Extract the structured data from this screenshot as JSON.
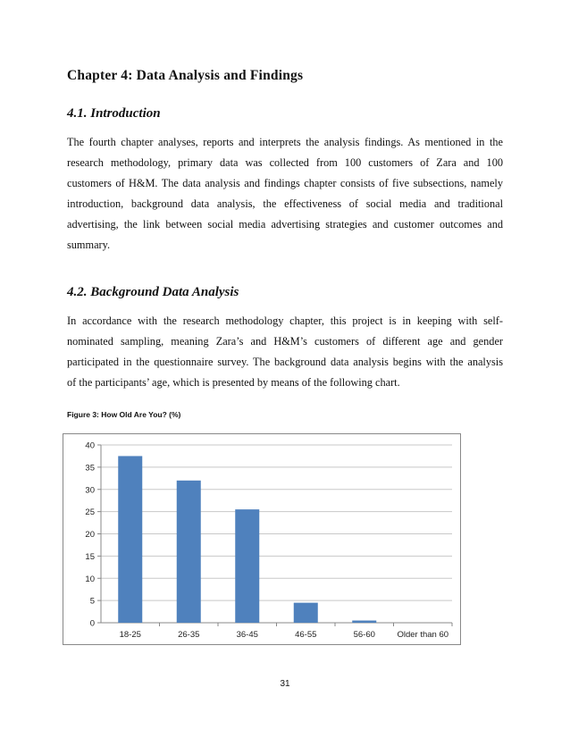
{
  "chapter_title": "Chapter 4: Data Analysis and Findings",
  "section_1": {
    "heading": "4.1. Introduction",
    "lines": [
      "The fourth chapter analyses, reports and interprets the analysis findings. As mentioned in the",
      "research methodology, primary data was collected from 100 customers of Zara and 100",
      "customers of H&M. The data analysis and findings chapter consists of five subsections, namely",
      "introduction, background data analysis, the effectiveness of social media and traditional",
      "advertising, the link between social media advertising strategies and customer outcomes and",
      "summary."
    ]
  },
  "section_2": {
    "heading": "4.2. Background Data Analysis",
    "lines": [
      "In accordance with the research methodology chapter, this project is in keeping with self-",
      "nominated sampling, meaning Zara’s and H&M’s customers of different age and gender",
      "participated in the questionnaire survey. The background data analysis begins with the analysis",
      "of the participants’ age, which is presented by means of the following chart."
    ]
  },
  "figure_caption": "Figure 3: How Old Are You? (%)",
  "chart_data": {
    "type": "bar",
    "categories": [
      "18-25",
      "26-35",
      "36-45",
      "46-55",
      "56-60",
      "Older than 60"
    ],
    "values": [
      37.5,
      32,
      25.5,
      4.5,
      0.5,
      0
    ],
    "ylim": [
      0,
      40
    ],
    "yticks": [
      0,
      5,
      10,
      15,
      20,
      25,
      30,
      35,
      40
    ],
    "grid": true,
    "bar_color": "#4F81BD",
    "legend": "none"
  },
  "page_number": "31"
}
